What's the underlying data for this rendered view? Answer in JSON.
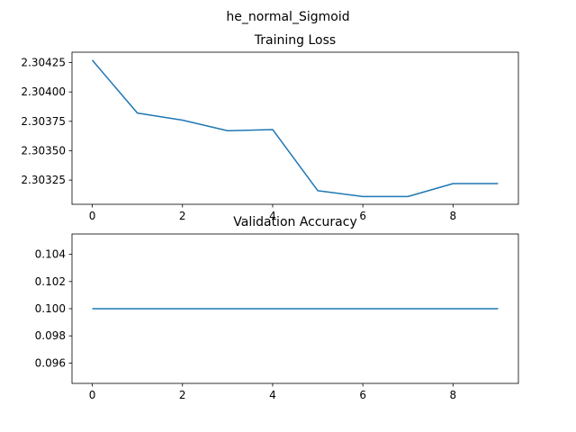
{
  "figure": {
    "suptitle": "he_normal_Sigmoid"
  },
  "colors": {
    "line": "#1f77b4",
    "axis": "#000000",
    "background": "#ffffff"
  },
  "chart_data": [
    {
      "type": "line",
      "title": "Training Loss",
      "xlabel": "",
      "ylabel": "",
      "grid": false,
      "x": [
        0,
        1,
        2,
        3,
        4,
        5,
        6,
        7,
        8,
        9
      ],
      "series": [
        {
          "values": [
            2.30427,
            2.30382,
            2.30376,
            2.30367,
            2.30368,
            2.30316,
            2.30311,
            2.30311,
            2.30322,
            2.30322
          ]
        }
      ],
      "xlim": [
        -0.45,
        9.45
      ],
      "ylim": [
        2.303044,
        2.304338
      ],
      "xticks": [
        0,
        2,
        4,
        6,
        8
      ],
      "xtick_labels": [
        "0",
        "2",
        "4",
        "6",
        "8"
      ],
      "yticks": [
        2.30325,
        2.3035,
        2.30375,
        2.304,
        2.30425
      ],
      "ytick_labels": [
        "2.30325",
        "2.30350",
        "2.30375",
        "2.30400",
        "2.30425"
      ]
    },
    {
      "type": "line",
      "title": "Validation Accuracy",
      "xlabel": "",
      "ylabel": "",
      "grid": false,
      "x": [
        0,
        1,
        2,
        3,
        4,
        5,
        6,
        7,
        8,
        9
      ],
      "series": [
        {
          "values": [
            0.1,
            0.1,
            0.1,
            0.1,
            0.1,
            0.1,
            0.1,
            0.1,
            0.1,
            0.1
          ]
        }
      ],
      "xlim": [
        -0.45,
        9.45
      ],
      "ylim": [
        0.0945,
        0.1055
      ],
      "xticks": [
        0,
        2,
        4,
        6,
        8
      ],
      "xtick_labels": [
        "0",
        "2",
        "4",
        "6",
        "8"
      ],
      "yticks": [
        0.096,
        0.098,
        0.1,
        0.102,
        0.104
      ],
      "ytick_labels": [
        "0.096",
        "0.098",
        "0.100",
        "0.102",
        "0.104"
      ]
    }
  ]
}
